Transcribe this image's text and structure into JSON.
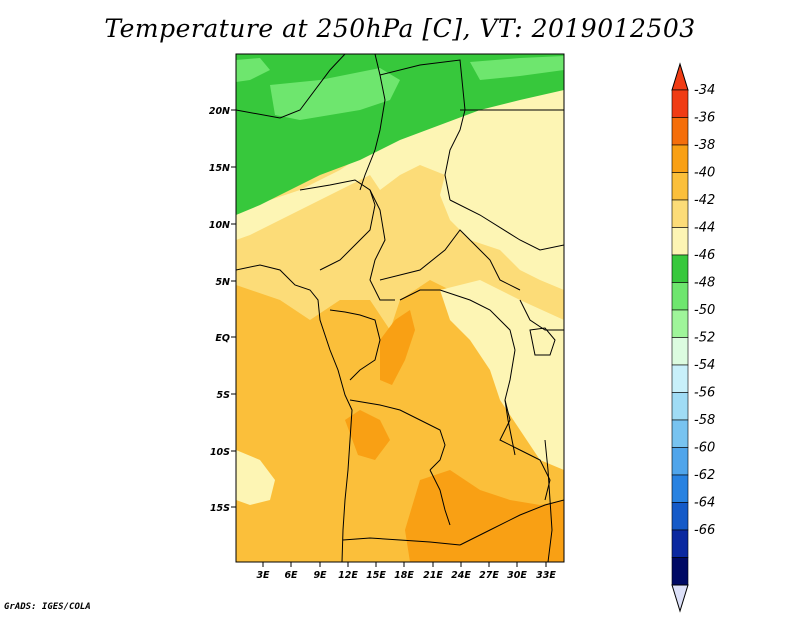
{
  "title": "Temperature at 250hPa [C], VT: 2019012503",
  "footer": "GrADS: IGES/COLA",
  "lat_ticks": [
    "20N",
    "15N",
    "10N",
    "5N",
    "EQ",
    "5S",
    "10S",
    "15S"
  ],
  "lon_ticks": [
    "3E",
    "6E",
    "9E",
    "12E",
    "15E",
    "18E",
    "21E",
    "24E",
    "27E",
    "30E",
    "33E"
  ],
  "colorbar": {
    "labels": [
      "-34",
      "-36",
      "-38",
      "-40",
      "-42",
      "-44",
      "-46",
      "-48",
      "-50",
      "-52",
      "-54",
      "-56",
      "-58",
      "-60",
      "-62",
      "-64",
      "-66"
    ],
    "colors": [
      "#f03c14",
      "#f56e0a",
      "#f9a014",
      "#fbbf3a",
      "#fcdc78",
      "#fdf5b4",
      "#37c83c",
      "#6ee66e",
      "#9ff59a",
      "#dcfce0",
      "#c8f0fa",
      "#a0dcf5",
      "#78c3f0",
      "#50a5eb",
      "#2882e1",
      "#145ac8",
      "#0a28a0",
      "#000a64"
    ],
    "top_triangle_color": "#f03c14",
    "bottom_triangle_color": "#dce0f8"
  },
  "colors": {
    "ocean_base": "#fbbf3a",
    "background": "#ffffff"
  }
}
